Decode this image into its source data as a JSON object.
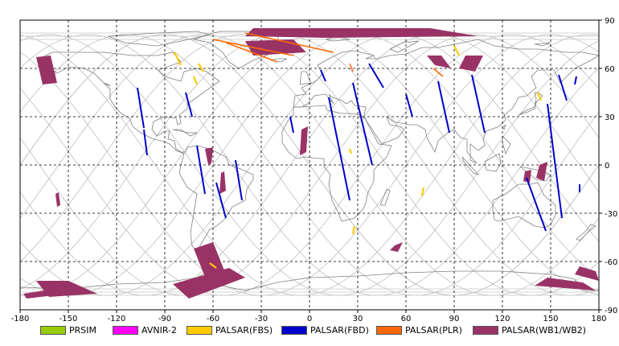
{
  "map": {
    "lon_range": [
      -180,
      180
    ],
    "lat_range": [
      -90,
      90
    ],
    "x_ticks": [
      "-180",
      "-150",
      "-120",
      "-90",
      "-60",
      "-30",
      "0",
      "30",
      "60",
      "90",
      "120",
      "150",
      "180"
    ],
    "y_ticks": [
      "90",
      "60",
      "30",
      "0",
      "-30",
      "-60",
      "-90"
    ],
    "grid": "dashed",
    "colors": {
      "PRSIM": "#99cc00",
      "AVNIR-2": "#ff00ff",
      "PALSAR(FBS)": "#ffcc00",
      "PALSAR(FBD)": "#0000cc",
      "PALSAR(PLR)": "#ff6600",
      "PALSAR(WB1/WB2)": "#993366"
    }
  },
  "legend": [
    {
      "label": "PRSIM",
      "color": "#99cc00"
    },
    {
      "label": "AVNIR-2",
      "color": "#ff00ff"
    },
    {
      "label": "PALSAR(FBS)",
      "color": "#ffcc00"
    },
    {
      "label": "PALSAR(FBD)",
      "color": "#0000cc"
    },
    {
      "label": "PALSAR(PLR)",
      "color": "#ff6600"
    },
    {
      "label": "PALSAR(WB1/WB2)",
      "color": "#993366"
    }
  ],
  "observations": {
    "fbd": [
      [
        [
          -107,
          48
        ],
        [
          -103,
          23
        ]
      ],
      [
        [
          -103,
          22
        ],
        [
          -101,
          6
        ]
      ],
      [
        [
          -77,
          45
        ],
        [
          -73,
          30
        ]
      ],
      [
        [
          -70,
          12
        ],
        [
          -65,
          -18
        ]
      ],
      [
        [
          -58,
          -11
        ],
        [
          -52,
          -33
        ]
      ],
      [
        [
          -46,
          3
        ],
        [
          -42,
          -22
        ]
      ],
      [
        [
          7,
          59
        ],
        [
          10,
          52
        ]
      ],
      [
        [
          -12,
          30
        ],
        [
          -10,
          20
        ]
      ],
      [
        [
          12,
          42
        ],
        [
          25,
          -22
        ]
      ],
      [
        [
          27,
          51
        ],
        [
          39,
          0
        ]
      ],
      [
        [
          37,
          63
        ],
        [
          46,
          48
        ]
      ],
      [
        [
          60,
          44
        ],
        [
          64,
          30
        ]
      ],
      [
        [
          80,
          52
        ],
        [
          87,
          20
        ]
      ],
      [
        [
          101,
          56
        ],
        [
          109,
          20
        ]
      ],
      [
        [
          148,
          38
        ],
        [
          157,
          -33
        ]
      ],
      [
        [
          135,
          -8
        ],
        [
          147,
          -41
        ]
      ],
      [
        [
          155,
          56
        ],
        [
          160,
          40
        ]
      ],
      [
        [
          168,
          -12
        ],
        [
          168,
          -17
        ]
      ],
      [
        [
          166,
          55
        ],
        [
          165,
          50
        ]
      ]
    ],
    "fbs": [
      [
        [
          -84,
          70
        ],
        [
          -80,
          62
        ]
      ],
      [
        [
          -72,
          55
        ],
        [
          -70,
          50
        ]
      ],
      [
        [
          -69,
          63
        ],
        [
          -66,
          58
        ]
      ],
      [
        [
          25,
          10
        ],
        [
          26,
          7
        ]
      ],
      [
        [
          90,
          74
        ],
        [
          93,
          68
        ]
      ],
      [
        [
          142,
          45
        ],
        [
          144,
          40
        ]
      ],
      [
        [
          28,
          -38
        ],
        [
          27,
          -43
        ]
      ],
      [
        [
          -62,
          -61
        ],
        [
          -58,
          -64
        ]
      ],
      [
        [
          71,
          -14
        ],
        [
          70,
          -19
        ]
      ]
    ],
    "plr": [
      [
        [
          -60,
          78
        ],
        [
          -10,
          68
        ]
      ],
      [
        [
          -52,
          76
        ],
        [
          -20,
          64
        ]
      ],
      [
        [
          -40,
          82
        ],
        [
          15,
          70
        ]
      ],
      [
        [
          25,
          63
        ],
        [
          27,
          58
        ]
      ],
      [
        [
          77,
          60
        ],
        [
          83,
          55
        ]
      ]
    ],
    "wb": [
      [
        [
          [
            -170,
            67
          ],
          [
            -161,
            68
          ],
          [
            -157,
            51
          ],
          [
            -166,
            50
          ]
        ]
      ],
      [
        [
          [
            -35,
            85
          ],
          [
            75,
            85
          ],
          [
            105,
            80
          ],
          [
            10,
            79
          ],
          [
            -40,
            80
          ]
        ]
      ],
      [
        [
          [
            -40,
            77
          ],
          [
            -10,
            78
          ],
          [
            -2,
            70
          ],
          [
            -35,
            68
          ]
        ]
      ],
      [
        [
          [
            -158,
            -18
          ],
          [
            -156,
            -17
          ],
          [
            -155,
            -25
          ],
          [
            -157,
            -26
          ]
        ]
      ],
      [
        [
          [
            -72,
            -52
          ],
          [
            -60,
            -48
          ],
          [
            -52,
            -68
          ],
          [
            -64,
            -72
          ]
        ]
      ],
      [
        [
          [
            -85,
            -74
          ],
          [
            -50,
            -64
          ],
          [
            -40,
            -70
          ],
          [
            -75,
            -83
          ]
        ]
      ],
      [
        [
          [
            -170,
            -72
          ],
          [
            -150,
            -72
          ],
          [
            -132,
            -80
          ],
          [
            -162,
            -82
          ]
        ]
      ],
      [
        [
          [
            -178,
            -80
          ],
          [
            -165,
            -78
          ],
          [
            -150,
            -80
          ],
          [
            -176,
            -83
          ]
        ]
      ],
      [
        [
          [
            -5,
            22
          ],
          [
            -1,
            24
          ],
          [
            -2,
            8
          ],
          [
            -6,
            6
          ]
        ]
      ],
      [
        [
          [
            73,
            68
          ],
          [
            78,
            62
          ],
          [
            88,
            60
          ],
          [
            82,
            68
          ]
        ]
      ],
      [
        [
          [
            97,
            68
          ],
          [
            108,
            68
          ],
          [
            103,
            58
          ],
          [
            93,
            60
          ]
        ]
      ],
      [
        [
          [
            53,
            -50
          ],
          [
            58,
            -48
          ],
          [
            55,
            -54
          ],
          [
            50,
            -53
          ]
        ]
      ],
      [
        [
          [
            134,
            -4
          ],
          [
            138,
            -3
          ],
          [
            137,
            -11
          ],
          [
            133,
            -10
          ]
        ]
      ],
      [
        [
          [
            143,
            0
          ],
          [
            148,
            2
          ],
          [
            146,
            -10
          ],
          [
            141,
            -8
          ]
        ]
      ],
      [
        [
          [
            168,
            -63
          ],
          [
            178,
            -66
          ],
          [
            180,
            -72
          ],
          [
            165,
            -68
          ]
        ]
      ],
      [
        [
          [
            148,
            -70
          ],
          [
            170,
            -73
          ],
          [
            178,
            -78
          ],
          [
            140,
            -75
          ]
        ]
      ],
      [
        [
          [
            -55,
            -5
          ],
          [
            -53,
            -4
          ],
          [
            -52,
            -16
          ],
          [
            -56,
            -18
          ]
        ]
      ],
      [
        [
          [
            -65,
            10
          ],
          [
            -60,
            11
          ],
          [
            -61,
            1
          ],
          [
            -63,
            0
          ]
        ]
      ]
    ]
  }
}
